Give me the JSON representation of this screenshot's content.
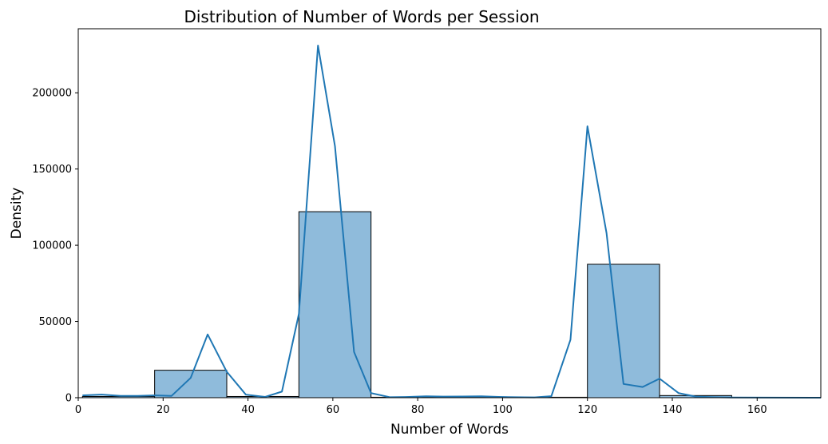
{
  "chart_data": {
    "type": "bar",
    "title": "Distribution of Number of Words per Session",
    "xlabel": "Number of Words",
    "ylabel": "Density",
    "xlim": [
      0,
      175
    ],
    "ylim": [
      0,
      242000
    ],
    "xticks": [
      0,
      20,
      40,
      60,
      80,
      100,
      120,
      140,
      160
    ],
    "yticks": [
      0,
      50000,
      100000,
      150000,
      200000
    ],
    "grid": false,
    "colors": {
      "bar_fill": "#8fbbdb",
      "bar_edge": "#000000",
      "line": "#1f77b4"
    },
    "histogram": {
      "bin_edges": [
        1,
        18,
        35,
        52,
        69,
        86,
        103,
        120,
        137,
        154
      ],
      "values": [
        800,
        18000,
        800,
        122000,
        300,
        200,
        300,
        87500,
        1400
      ]
    },
    "kde_line": {
      "x": [
        1,
        5.5,
        10,
        14,
        18,
        22,
        26.5,
        30.5,
        35,
        39.5,
        44,
        48,
        52,
        56.5,
        60.5,
        65,
        69,
        73.5,
        78,
        82,
        86,
        90.5,
        95,
        99,
        103,
        107.5,
        111.5,
        116,
        120,
        124.5,
        128.5,
        133,
        137,
        141.5,
        145.5,
        150,
        154,
        175
      ],
      "y": [
        1500,
        2000,
        1200,
        1200,
        1500,
        1200,
        13000,
        41500,
        17000,
        2000,
        500,
        4000,
        55000,
        231000,
        165000,
        30000,
        3000,
        300,
        500,
        900,
        700,
        800,
        900,
        500,
        300,
        200,
        1000,
        38000,
        178000,
        108000,
        9000,
        7000,
        12500,
        3000,
        700,
        300,
        100,
        0
      ]
    }
  }
}
